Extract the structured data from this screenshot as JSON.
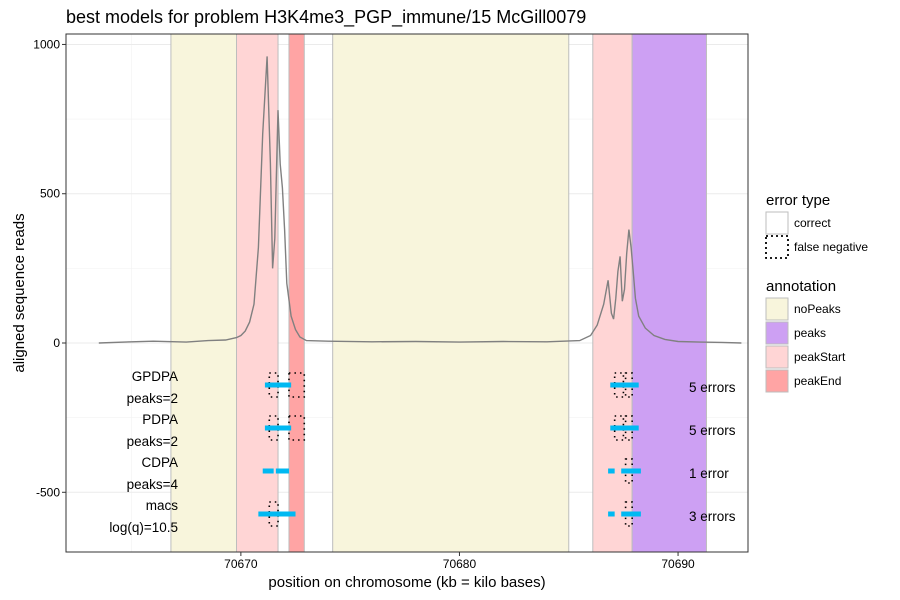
{
  "chart_data": {
    "type": "line",
    "title": "best models for problem H3K4me3_PGP_immune/15 McGill0079",
    "xlabel": "position on chromosome (kb = kilo bases)",
    "ylabel": "aligned sequence reads",
    "xlim": [
      70662.0,
      70693.2
    ],
    "ylim": [
      -700,
      1035
    ],
    "x_ticks": [
      70670,
      70680,
      70690
    ],
    "y_ticks": [
      -500,
      0,
      500,
      1000
    ],
    "grid": true,
    "annotations": [
      {
        "type": "noPeaks",
        "start": 70666.8,
        "end": 70669.8
      },
      {
        "type": "peakStart",
        "start": 70669.8,
        "end": 70671.7
      },
      {
        "type": "peakEnd",
        "start": 70672.2,
        "end": 70672.9
      },
      {
        "type": "noPeaks",
        "start": 70674.2,
        "end": 70685.0
      },
      {
        "type": "peakStart",
        "start": 70686.1,
        "end": 70687.9
      },
      {
        "type": "peaks",
        "start": 70687.9,
        "end": 70691.3
      }
    ],
    "coverage": {
      "x": [
        70663.5,
        70665.0,
        70666.0,
        70667.5,
        70668.5,
        70669.3,
        70669.8,
        70670.0,
        70670.2,
        70670.4,
        70670.6,
        70670.8,
        70671.0,
        70671.2,
        70671.35,
        70671.45,
        70671.55,
        70671.7,
        70671.8,
        70671.9,
        70672.0,
        70672.1,
        70672.3,
        70672.5,
        70672.7,
        70673.0,
        70674.0,
        70676.0,
        70678.0,
        70680.0,
        70682.0,
        70684.0,
        70685.5,
        70686.0,
        70686.3,
        70686.6,
        70686.8,
        70686.95,
        70687.05,
        70687.15,
        70687.25,
        70687.35,
        70687.45,
        70687.55,
        70687.65,
        70687.75,
        70687.85,
        70687.95,
        70688.05,
        70688.2,
        70688.5,
        70688.9,
        70689.4,
        70690.0,
        70691.0,
        70692.0,
        70692.9
      ],
      "y": [
        0,
        4,
        6,
        3,
        8,
        10,
        18,
        25,
        40,
        70,
        130,
        320,
        700,
        960,
        600,
        250,
        350,
        780,
        600,
        520,
        380,
        200,
        90,
        45,
        20,
        8,
        6,
        4,
        5,
        3,
        5,
        4,
        8,
        25,
        60,
        130,
        210,
        100,
        80,
        150,
        240,
        290,
        140,
        180,
        300,
        380,
        320,
        240,
        150,
        90,
        50,
        25,
        12,
        5,
        3,
        2,
        0
      ]
    },
    "models": [
      {
        "name": "GPDPA",
        "sub": "peaks=2",
        "errors": "5 errors",
        "segments": [
          [
            70671.1,
            70672.3
          ],
          [
            70686.9,
            70688.2
          ]
        ],
        "false_negative": [
          [
            70671.3,
            70671.7
          ],
          [
            70672.2,
            70672.9
          ],
          [
            70687.1,
            70687.5
          ],
          [
            70687.6,
            70687.9
          ]
        ]
      },
      {
        "name": "PDPA",
        "sub": "peaks=2",
        "errors": "5 errors",
        "segments": [
          [
            70671.1,
            70672.3
          ],
          [
            70686.9,
            70688.2
          ]
        ],
        "false_negative": [
          [
            70671.3,
            70671.7
          ],
          [
            70672.2,
            70672.9
          ],
          [
            70687.1,
            70687.5
          ],
          [
            70687.6,
            70687.9
          ]
        ]
      },
      {
        "name": "CDPA",
        "sub": "peaks=4",
        "errors": "1 error",
        "segments": [
          [
            70671.0,
            70671.5
          ],
          [
            70671.6,
            70672.2
          ],
          [
            70686.8,
            70687.1
          ],
          [
            70687.4,
            70688.3
          ]
        ],
        "false_negative": [
          [
            70687.6,
            70687.9
          ]
        ]
      },
      {
        "name": "macs",
        "sub": "log(q)=10.5",
        "errors": "3 errors",
        "segments": [
          [
            70670.8,
            70672.5
          ],
          [
            70686.8,
            70687.1
          ],
          [
            70687.4,
            70688.3
          ]
        ],
        "false_negative": [
          [
            70671.3,
            70671.7
          ],
          [
            70687.6,
            70687.9
          ]
        ]
      }
    ],
    "legend": {
      "placement": "right",
      "error_title": "error type",
      "error_items": [
        "correct",
        "false negative"
      ],
      "annotation_title": "annotation",
      "annotation_items": [
        "noPeaks",
        "peaks",
        "peakStart",
        "peakEnd"
      ]
    },
    "colors": {
      "noPeaks": "#f8f5dc",
      "peaks": "#cda0f3",
      "peakStart": "#ffd5d5",
      "peakEnd": "#ffa4a4",
      "segment": "#00b9f2",
      "coverage": "#808080"
    }
  }
}
